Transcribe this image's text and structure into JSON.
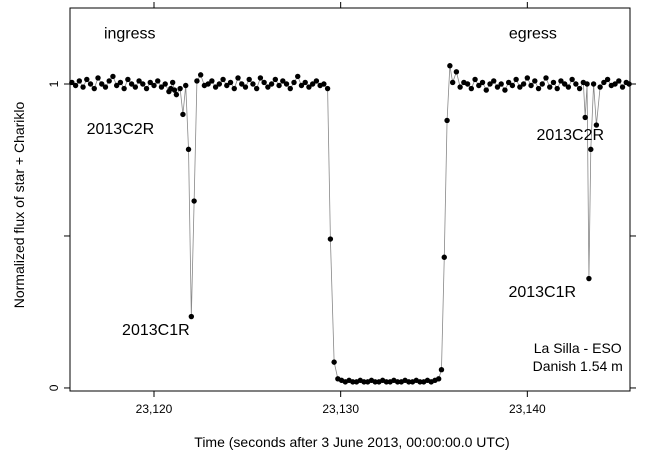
{
  "chart_data": {
    "type": "scatter",
    "title": "",
    "xlabel": "Time (seconds after 3 June 2013, 00:00:00.0 UTC)",
    "ylabel": "Normalized flux of star + Chariklo",
    "xlim": [
      23115.5,
      23145.5
    ],
    "ylim": [
      -0.01,
      1.25
    ],
    "x_ticks": [
      {
        "value": 23120,
        "label": "23,120"
      },
      {
        "value": 23130,
        "label": "23,130"
      },
      {
        "value": 23140,
        "label": "23,140"
      }
    ],
    "y_ticks": [
      {
        "value": 0,
        "label": "0"
      },
      {
        "value": 1,
        "label": "1"
      }
    ],
    "y_minor_ticks": [
      0.5
    ],
    "grid": false,
    "connect_points": true,
    "annotations": [
      {
        "id": "ingress",
        "text": "ingress",
        "x": 23118.7,
        "y": 1.15
      },
      {
        "id": "egress",
        "text": "egress",
        "x": 23140.3,
        "y": 1.15
      },
      {
        "id": "ring2-ingress",
        "text": "2013C2R",
        "x": 23118.2,
        "y": 0.835
      },
      {
        "id": "ring1-ingress",
        "text": "2013C1R",
        "x": 23120.1,
        "y": 0.175
      },
      {
        "id": "ring2-egress",
        "text": "2013C2R",
        "x": 23142.3,
        "y": 0.815
      },
      {
        "id": "ring1-egress",
        "text": "2013C1R",
        "x": 23140.8,
        "y": 0.3
      },
      {
        "id": "site",
        "text": "La Silla - ESO",
        "x": 23142.7,
        "y": 0.115
      },
      {
        "id": "telescope",
        "text": "Danish 1.54 m",
        "x": 23142.7,
        "y": 0.055
      }
    ],
    "series": [
      {
        "points": [
          [
            23115.6,
            1.005
          ],
          [
            23115.8,
            0.995
          ],
          [
            23116.0,
            1.01
          ],
          [
            23116.2,
            0.99
          ],
          [
            23116.4,
            1.015
          ],
          [
            23116.6,
            1.0
          ],
          [
            23116.8,
            0.985
          ],
          [
            23117.0,
            1.02
          ],
          [
            23117.2,
            1.0
          ],
          [
            23117.4,
            0.99
          ],
          [
            23117.6,
            1.01
          ],
          [
            23117.8,
            1.025
          ],
          [
            23118.0,
            0.995
          ],
          [
            23118.2,
            1.005
          ],
          [
            23118.4,
            0.985
          ],
          [
            23118.6,
            1.015
          ],
          [
            23118.8,
            1.0
          ],
          [
            23119.0,
            0.99
          ],
          [
            23119.2,
            1.01
          ],
          [
            23119.4,
            1.0
          ],
          [
            23119.6,
            0.985
          ],
          [
            23119.8,
            1.005
          ],
          [
            23120.0,
            0.995
          ],
          [
            23120.2,
            1.01
          ],
          [
            23120.4,
            0.99
          ],
          [
            23120.6,
            1.0
          ],
          [
            23120.8,
            0.975
          ],
          [
            23120.9,
            0.985
          ],
          [
            23121.0,
            1.005
          ],
          [
            23121.1,
            0.98
          ],
          [
            23121.2,
            0.965
          ],
          [
            23121.4,
            0.985
          ],
          [
            23121.55,
            0.9
          ],
          [
            23121.7,
            0.995
          ],
          [
            23121.85,
            0.785
          ],
          [
            23122.0,
            0.235
          ],
          [
            23122.15,
            0.615
          ],
          [
            23122.3,
            1.01
          ],
          [
            23122.5,
            1.03
          ],
          [
            23122.7,
            0.995
          ],
          [
            23122.9,
            1.0
          ],
          [
            23123.1,
            1.01
          ],
          [
            23123.3,
            0.99
          ],
          [
            23123.5,
            1.0
          ],
          [
            23123.7,
            1.015
          ],
          [
            23123.9,
            0.995
          ],
          [
            23124.1,
            1.005
          ],
          [
            23124.3,
            0.985
          ],
          [
            23124.5,
            1.02
          ],
          [
            23124.7,
            1.0
          ],
          [
            23124.9,
            0.99
          ],
          [
            23125.1,
            1.015
          ],
          [
            23125.3,
            1.0
          ],
          [
            23125.5,
            0.985
          ],
          [
            23125.7,
            1.02
          ],
          [
            23125.9,
            1.005
          ],
          [
            23126.1,
            0.99
          ],
          [
            23126.3,
            1.0
          ],
          [
            23126.5,
            1.015
          ],
          [
            23126.7,
            0.995
          ],
          [
            23126.9,
            1.01
          ],
          [
            23127.1,
            1.0
          ],
          [
            23127.3,
            0.985
          ],
          [
            23127.5,
            1.005
          ],
          [
            23127.7,
            1.025
          ],
          [
            23127.9,
            0.995
          ],
          [
            23128.1,
            1.005
          ],
          [
            23128.3,
            0.99
          ],
          [
            23128.5,
            1.0
          ],
          [
            23128.7,
            1.01
          ],
          [
            23128.9,
            0.995
          ],
          [
            23129.1,
            1.0
          ],
          [
            23129.3,
            0.985
          ],
          [
            23129.45,
            0.49
          ],
          [
            23129.65,
            0.085
          ],
          [
            23129.85,
            0.03
          ],
          [
            23130.05,
            0.025
          ],
          [
            23130.25,
            0.02
          ],
          [
            23130.45,
            0.025
          ],
          [
            23130.65,
            0.02
          ],
          [
            23130.85,
            0.02
          ],
          [
            23131.05,
            0.025
          ],
          [
            23131.25,
            0.02
          ],
          [
            23131.45,
            0.02
          ],
          [
            23131.65,
            0.025
          ],
          [
            23131.85,
            0.02
          ],
          [
            23132.05,
            0.02
          ],
          [
            23132.25,
            0.025
          ],
          [
            23132.45,
            0.02
          ],
          [
            23132.65,
            0.02
          ],
          [
            23132.85,
            0.025
          ],
          [
            23133.05,
            0.02
          ],
          [
            23133.25,
            0.02
          ],
          [
            23133.45,
            0.025
          ],
          [
            23133.65,
            0.02
          ],
          [
            23133.85,
            0.02
          ],
          [
            23134.05,
            0.025
          ],
          [
            23134.25,
            0.02
          ],
          [
            23134.45,
            0.02
          ],
          [
            23134.65,
            0.025
          ],
          [
            23134.85,
            0.02
          ],
          [
            23135.05,
            0.025
          ],
          [
            23135.25,
            0.03
          ],
          [
            23135.4,
            0.06
          ],
          [
            23135.55,
            0.43
          ],
          [
            23135.7,
            0.88
          ],
          [
            23135.85,
            1.06
          ],
          [
            23136.0,
            1.005
          ],
          [
            23136.2,
            1.04
          ],
          [
            23136.4,
            0.99
          ],
          [
            23136.6,
            1.005
          ],
          [
            23136.8,
            1.0
          ],
          [
            23137.0,
            0.985
          ],
          [
            23137.2,
            1.015
          ],
          [
            23137.4,
            0.995
          ],
          [
            23137.6,
            1.005
          ],
          [
            23137.8,
            0.98
          ],
          [
            23138.0,
            1.0
          ],
          [
            23138.2,
            1.01
          ],
          [
            23138.4,
            0.99
          ],
          [
            23138.6,
            1.0
          ],
          [
            23138.8,
            0.98
          ],
          [
            23139.0,
            1.005
          ],
          [
            23139.2,
            0.995
          ],
          [
            23139.4,
            1.015
          ],
          [
            23139.6,
            0.99
          ],
          [
            23139.8,
            1.0
          ],
          [
            23140.0,
            1.02
          ],
          [
            23140.2,
            0.995
          ],
          [
            23140.4,
            1.01
          ],
          [
            23140.6,
            0.985
          ],
          [
            23140.8,
            1.0
          ],
          [
            23141.0,
            1.02
          ],
          [
            23141.2,
            0.99
          ],
          [
            23141.4,
            1.005
          ],
          [
            23141.6,
            0.985
          ],
          [
            23141.8,
            1.01
          ],
          [
            23142.0,
            1.0
          ],
          [
            23142.2,
            0.99
          ],
          [
            23142.4,
            1.015
          ],
          [
            23142.6,
            1.0
          ],
          [
            23142.8,
            0.985
          ],
          [
            23143.0,
            1.005
          ],
          [
            23143.1,
            0.89
          ],
          [
            23143.2,
            1.0
          ],
          [
            23143.3,
            0.36
          ],
          [
            23143.4,
            0.785
          ],
          [
            23143.55,
            1.0
          ],
          [
            23143.7,
            0.865
          ],
          [
            23143.9,
            0.99
          ],
          [
            23144.1,
            1.005
          ],
          [
            23144.3,
            1.015
          ],
          [
            23144.5,
            0.995
          ],
          [
            23144.7,
            1.0
          ],
          [
            23144.9,
            1.01
          ],
          [
            23145.1,
            0.99
          ],
          [
            23145.3,
            1.005
          ],
          [
            23145.45,
            1.0
          ]
        ]
      }
    ]
  }
}
